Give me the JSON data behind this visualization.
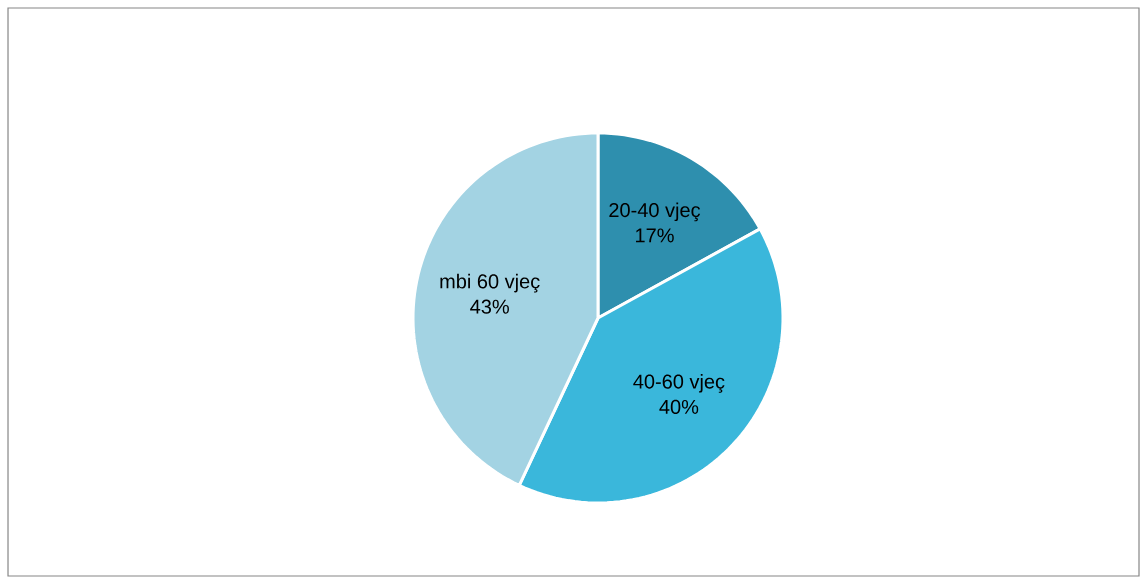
{
  "chart_data": {
    "type": "pie",
    "categories": [
      "20-40 vjeç",
      "40-60 vjeç",
      "mbi 60 vjeç"
    ],
    "values": [
      17,
      40,
      43
    ],
    "value_labels": [
      "17%",
      "40%",
      "43%"
    ],
    "colors": [
      "#2e8fae",
      "#3ab7db",
      "#a3d3e3"
    ]
  }
}
